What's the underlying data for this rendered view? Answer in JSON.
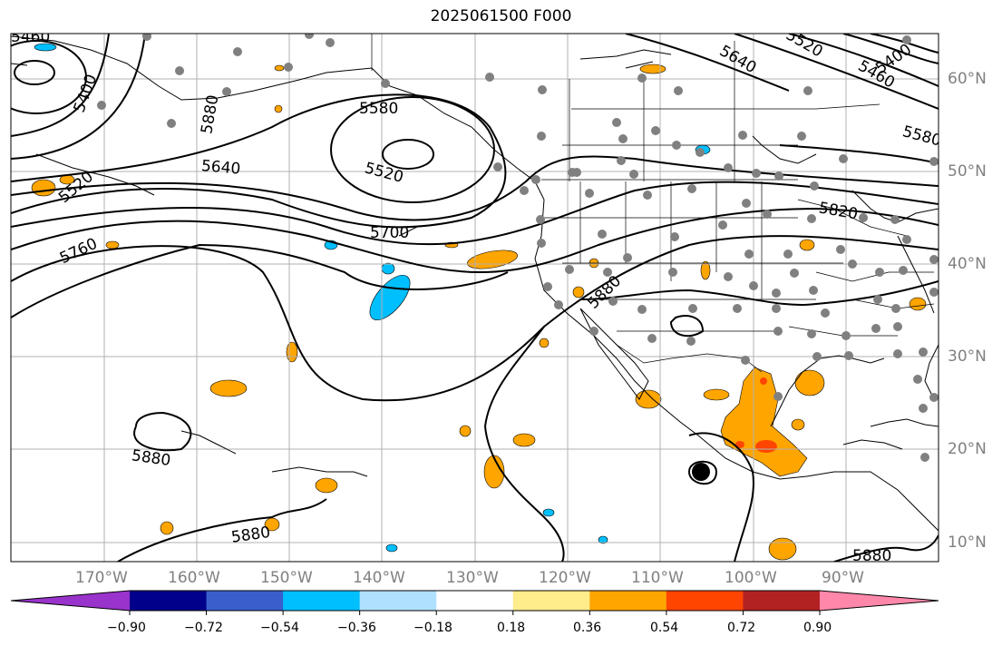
{
  "title": "2025061500 F000",
  "longitude_labels": [
    "170°W",
    "160°W",
    "150°W",
    "140°W",
    "130°W",
    "120°W",
    "110°W",
    "100°W",
    "90°W"
  ],
  "latitude_labels": [
    "60°N",
    "50°N",
    "40°N",
    "30°N",
    "20°N",
    "10°N"
  ],
  "contour_labels": [
    "5460",
    "5400",
    "5580",
    "5520",
    "5640",
    "5700",
    "5760",
    "5820",
    "5880",
    "5880",
    "5880",
    "5880",
    "5880",
    "5640",
    "5520",
    "5400",
    "5460",
    "5580",
    "5520"
  ],
  "colorbar": {
    "ticks": [
      "−0.90",
      "−0.72",
      "−0.54",
      "−0.36",
      "−0.18",
      "0.18",
      "0.36",
      "0.54",
      "0.72",
      "0.90"
    ],
    "colors": [
      "#9933cc",
      "#00008b",
      "#3a5fcd",
      "#00bfff",
      "#b0e0ff",
      "#ffffff",
      "#ffec8b",
      "#ffa500",
      "#ff4500",
      "#b22222",
      "#ff88aa"
    ]
  },
  "chart_data": {
    "type": "map",
    "title": "2025061500 F000",
    "projection": "equirectangular",
    "lon_range": [
      -180,
      -80
    ],
    "lat_range": [
      8,
      65
    ],
    "contour_levels": [
      5400,
      5460,
      5520,
      5580,
      5640,
      5700,
      5760,
      5820,
      5880
    ],
    "colorbar_ticks": [
      -0.9,
      -0.72,
      -0.54,
      -0.36,
      -0.18,
      0.18,
      0.36,
      0.54,
      0.72,
      0.9
    ]
  }
}
